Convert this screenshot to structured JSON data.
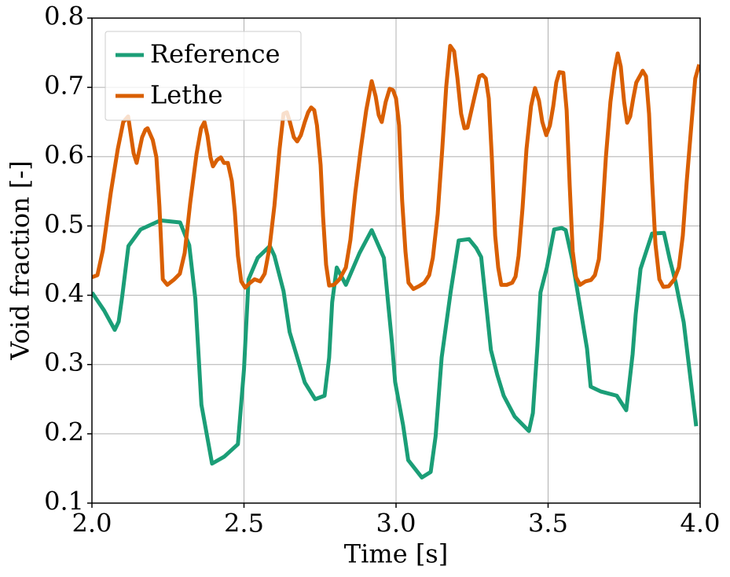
{
  "chart_data": {
    "type": "line",
    "x_label": "Time [s]",
    "y_label": "Void fraction [-]",
    "xlim": [
      2.0,
      4.0
    ],
    "ylim": [
      0.1,
      0.8
    ],
    "xticks": [
      {
        "value": 2,
        "label": "2.0"
      },
      2.5,
      {
        "value": 3,
        "label": "3.0"
      },
      3.5,
      {
        "value": 4,
        "label": "4.0"
      }
    ],
    "yticks": [
      0.1,
      0.2,
      0.3,
      0.4,
      0.5,
      0.6,
      0.7,
      0.8
    ],
    "grid": true,
    "legend": "upper left",
    "series": [
      {
        "name": "Reference",
        "color": "#1b9e77",
        "x": [
          2.0,
          2.04,
          2.075,
          2.088,
          2.1,
          2.12,
          2.16,
          2.225,
          2.29,
          2.32,
          2.34,
          2.36,
          2.395,
          2.435,
          2.48,
          2.5,
          2.515,
          2.545,
          2.585,
          2.6,
          2.63,
          2.65,
          2.7,
          2.734,
          2.765,
          2.78,
          2.79,
          2.805,
          2.835,
          2.88,
          2.92,
          2.96,
          2.975,
          2.987,
          2.997,
          3.023,
          3.04,
          3.085,
          3.114,
          3.13,
          3.15,
          3.18,
          3.206,
          3.24,
          3.264,
          3.28,
          3.297,
          3.312,
          3.333,
          3.354,
          3.39,
          3.437,
          3.45,
          3.465,
          3.475,
          3.496,
          3.52,
          3.545,
          3.558,
          3.579,
          3.605,
          3.628,
          3.64,
          3.674,
          3.726,
          3.757,
          3.778,
          3.788,
          3.804,
          3.842,
          3.881,
          3.9,
          3.92,
          3.946,
          3.987
        ],
        "values": [
          0.404,
          0.378,
          0.35,
          0.362,
          0.4,
          0.471,
          0.495,
          0.508,
          0.505,
          0.472,
          0.395,
          0.242,
          0.157,
          0.167,
          0.185,
          0.293,
          0.423,
          0.454,
          0.471,
          0.457,
          0.406,
          0.347,
          0.274,
          0.25,
          0.255,
          0.31,
          0.39,
          0.44,
          0.415,
          0.461,
          0.494,
          0.454,
          0.384,
          0.33,
          0.275,
          0.213,
          0.162,
          0.137,
          0.145,
          0.196,
          0.31,
          0.406,
          0.479,
          0.481,
          0.468,
          0.455,
          0.384,
          0.321,
          0.285,
          0.255,
          0.225,
          0.204,
          0.23,
          0.327,
          0.404,
          0.44,
          0.495,
          0.497,
          0.494,
          0.452,
          0.384,
          0.323,
          0.268,
          0.261,
          0.255,
          0.234,
          0.315,
          0.372,
          0.438,
          0.489,
          0.49,
          0.452,
          0.418,
          0.361,
          0.211
        ]
      },
      {
        "name": "Lethe",
        "color": "#d95f02",
        "x": [
          2.0,
          2.018,
          2.036,
          2.062,
          2.085,
          2.103,
          2.119,
          2.137,
          2.147,
          2.165,
          2.176,
          2.183,
          2.2,
          2.212,
          2.222,
          2.233,
          2.248,
          2.271,
          2.289,
          2.305,
          2.323,
          2.344,
          2.359,
          2.37,
          2.38,
          2.39,
          2.398,
          2.411,
          2.424,
          2.434,
          2.447,
          2.46,
          2.47,
          2.48,
          2.491,
          2.504,
          2.52,
          2.535,
          2.553,
          2.568,
          2.584,
          2.6,
          2.617,
          2.63,
          2.641,
          2.651,
          2.664,
          2.675,
          2.687,
          2.7,
          2.711,
          2.721,
          2.731,
          2.74,
          2.752,
          2.76,
          2.77,
          2.78,
          2.796,
          2.814,
          2.835,
          2.85,
          2.866,
          2.884,
          2.902,
          2.92,
          2.933,
          2.943,
          2.953,
          2.966,
          2.979,
          2.99,
          3.0,
          3.01,
          3.02,
          3.031,
          3.041,
          3.057,
          3.075,
          3.093,
          3.109,
          3.121,
          3.137,
          3.152,
          3.165,
          3.178,
          3.191,
          3.202,
          3.214,
          3.225,
          3.235,
          3.248,
          3.261,
          3.274,
          3.284,
          3.295,
          3.305,
          3.315,
          3.326,
          3.336,
          3.346,
          3.364,
          3.382,
          3.393,
          3.403,
          3.416,
          3.429,
          3.444,
          3.457,
          3.47,
          3.481,
          3.494,
          3.506,
          3.517,
          3.527,
          3.537,
          3.55,
          3.561,
          3.571,
          3.581,
          3.592,
          3.605,
          3.623,
          3.641,
          3.654,
          3.667,
          3.677,
          3.69,
          3.705,
          3.718,
          3.729,
          3.739,
          3.75,
          3.76,
          3.77,
          3.78,
          3.79,
          3.804,
          3.811,
          3.822,
          3.832,
          3.842,
          3.853,
          3.866,
          3.879,
          3.897,
          3.915,
          3.93,
          3.943,
          3.956,
          3.972,
          3.984,
          3.997
        ],
        "values": [
          0.426,
          0.429,
          0.465,
          0.548,
          0.611,
          0.65,
          0.658,
          0.605,
          0.591,
          0.628,
          0.639,
          0.641,
          0.624,
          0.599,
          0.528,
          0.423,
          0.415,
          0.423,
          0.431,
          0.461,
          0.533,
          0.604,
          0.641,
          0.65,
          0.63,
          0.599,
          0.586,
          0.595,
          0.599,
          0.591,
          0.591,
          0.565,
          0.52,
          0.457,
          0.42,
          0.411,
          0.418,
          0.423,
          0.42,
          0.431,
          0.469,
          0.529,
          0.611,
          0.662,
          0.664,
          0.65,
          0.628,
          0.622,
          0.631,
          0.65,
          0.664,
          0.671,
          0.667,
          0.645,
          0.588,
          0.514,
          0.444,
          0.414,
          0.415,
          0.423,
          0.44,
          0.48,
          0.548,
          0.611,
          0.667,
          0.709,
          0.687,
          0.66,
          0.65,
          0.679,
          0.698,
          0.696,
          0.684,
          0.645,
          0.537,
          0.463,
          0.418,
          0.409,
          0.413,
          0.418,
          0.429,
          0.454,
          0.517,
          0.611,
          0.701,
          0.76,
          0.752,
          0.713,
          0.662,
          0.641,
          0.642,
          0.667,
          0.692,
          0.716,
          0.718,
          0.713,
          0.684,
          0.599,
          0.486,
          0.44,
          0.415,
          0.415,
          0.418,
          0.427,
          0.457,
          0.526,
          0.611,
          0.673,
          0.699,
          0.681,
          0.65,
          0.631,
          0.645,
          0.673,
          0.707,
          0.722,
          0.721,
          0.667,
          0.559,
          0.463,
          0.426,
          0.415,
          0.42,
          0.422,
          0.429,
          0.452,
          0.508,
          0.599,
          0.679,
          0.724,
          0.749,
          0.73,
          0.679,
          0.649,
          0.658,
          0.684,
          0.707,
          0.718,
          0.724,
          0.716,
          0.662,
          0.565,
          0.474,
          0.423,
          0.412,
          0.413,
          0.423,
          0.44,
          0.486,
          0.565,
          0.65,
          0.713,
          0.733
        ]
      }
    ]
  }
}
